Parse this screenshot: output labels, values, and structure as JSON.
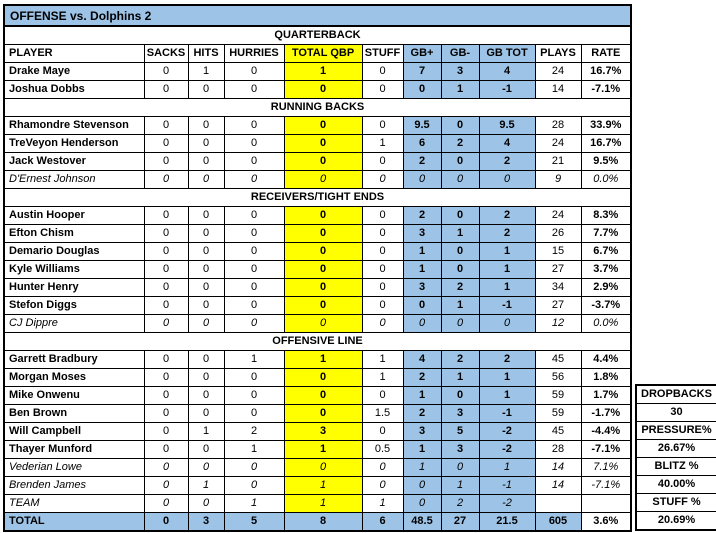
{
  "title": "OFFENSE vs. Dolphins 2",
  "colors": {
    "highlight_blue": "#9DC3E6",
    "highlight_yellow": "#FFFF00",
    "border": "#000000"
  },
  "columns": [
    "PLAYER",
    "SACKS",
    "HITS",
    "HURRIES",
    "TOTAL QBP",
    "STUFF",
    "GB+",
    "GB-",
    "GB TOT",
    "PLAYS",
    "RATE"
  ],
  "sections": [
    {
      "label": "QUARTERBACK",
      "rows": [
        {
          "player": "Drake Maye",
          "emphasis": "bold",
          "values": [
            "0",
            "1",
            "0",
            "1",
            "0",
            "7",
            "3",
            "4",
            "24",
            "16.7%"
          ]
        },
        {
          "player": "Joshua Dobbs",
          "emphasis": "bold",
          "values": [
            "0",
            "0",
            "0",
            "0",
            "0",
            "0",
            "1",
            "-1",
            "14",
            "-7.1%"
          ]
        }
      ]
    },
    {
      "label": "RUNNING BACKS",
      "rows": [
        {
          "player": "Rhamondre Stevenson",
          "emphasis": "bold",
          "values": [
            "0",
            "0",
            "0",
            "0",
            "0",
            "9.5",
            "0",
            "9.5",
            "28",
            "33.9%"
          ]
        },
        {
          "player": "TreVeyon Henderson",
          "emphasis": "bold",
          "values": [
            "0",
            "0",
            "0",
            "0",
            "1",
            "6",
            "2",
            "4",
            "24",
            "16.7%"
          ]
        },
        {
          "player": "Jack Westover",
          "emphasis": "bold",
          "values": [
            "0",
            "0",
            "0",
            "0",
            "0",
            "2",
            "0",
            "2",
            "21",
            "9.5%"
          ]
        },
        {
          "player": "D'Ernest Johnson",
          "emphasis": "italic",
          "values": [
            "0",
            "0",
            "0",
            "0",
            "0",
            "0",
            "0",
            "0",
            "9",
            "0.0%"
          ]
        }
      ]
    },
    {
      "label": "RECEIVERS/TIGHT ENDS",
      "rows": [
        {
          "player": "Austin Hooper",
          "emphasis": "bold",
          "values": [
            "0",
            "0",
            "0",
            "0",
            "0",
            "2",
            "0",
            "2",
            "24",
            "8.3%"
          ]
        },
        {
          "player": "Efton Chism",
          "emphasis": "bold",
          "values": [
            "0",
            "0",
            "0",
            "0",
            "0",
            "3",
            "1",
            "2",
            "26",
            "7.7%"
          ]
        },
        {
          "player": "Demario Douglas",
          "emphasis": "bold",
          "values": [
            "0",
            "0",
            "0",
            "0",
            "0",
            "1",
            "0",
            "1",
            "15",
            "6.7%"
          ]
        },
        {
          "player": "Kyle Williams",
          "emphasis": "bold",
          "values": [
            "0",
            "0",
            "0",
            "0",
            "0",
            "1",
            "0",
            "1",
            "27",
            "3.7%"
          ]
        },
        {
          "player": "Hunter Henry",
          "emphasis": "bold",
          "values": [
            "0",
            "0",
            "0",
            "0",
            "0",
            "3",
            "2",
            "1",
            "34",
            "2.9%"
          ]
        },
        {
          "player": "Stefon Diggs",
          "emphasis": "bold",
          "values": [
            "0",
            "0",
            "0",
            "0",
            "0",
            "0",
            "1",
            "-1",
            "27",
            "-3.7%"
          ]
        },
        {
          "player": "CJ Dippre",
          "emphasis": "italic",
          "values": [
            "0",
            "0",
            "0",
            "0",
            "0",
            "0",
            "0",
            "0",
            "12",
            "0.0%"
          ]
        }
      ]
    },
    {
      "label": "OFFENSIVE LINE",
      "rows": [
        {
          "player": "Garrett Bradbury",
          "emphasis": "bold",
          "values": [
            "0",
            "0",
            "1",
            "1",
            "1",
            "4",
            "2",
            "2",
            "45",
            "4.4%"
          ]
        },
        {
          "player": "Morgan Moses",
          "emphasis": "bold",
          "values": [
            "0",
            "0",
            "0",
            "0",
            "1",
            "2",
            "1",
            "1",
            "56",
            "1.8%"
          ]
        },
        {
          "player": "Mike Onwenu",
          "emphasis": "bold",
          "values": [
            "0",
            "0",
            "0",
            "0",
            "0",
            "1",
            "0",
            "1",
            "59",
            "1.7%"
          ]
        },
        {
          "player": "Ben Brown",
          "emphasis": "bold",
          "values": [
            "0",
            "0",
            "0",
            "0",
            "1.5",
            "2",
            "3",
            "-1",
            "59",
            "-1.7%"
          ]
        },
        {
          "player": "Will Campbell",
          "emphasis": "bold",
          "values": [
            "0",
            "1",
            "2",
            "3",
            "0",
            "3",
            "5",
            "-2",
            "45",
            "-4.4%"
          ]
        },
        {
          "player": "Thayer Munford",
          "emphasis": "bold",
          "values": [
            "0",
            "0",
            "1",
            "1",
            "0.5",
            "1",
            "3",
            "-2",
            "28",
            "-7.1%"
          ]
        },
        {
          "player": "Vederian Lowe",
          "emphasis": "italic",
          "values": [
            "0",
            "0",
            "0",
            "0",
            "0",
            "1",
            "0",
            "1",
            "14",
            "7.1%"
          ]
        },
        {
          "player": "Brenden James",
          "emphasis": "italic",
          "values": [
            "0",
            "1",
            "0",
            "1",
            "0",
            "0",
            "1",
            "-1",
            "14",
            "-7.1%"
          ]
        },
        {
          "player": "TEAM",
          "emphasis": "italic",
          "values": [
            "0",
            "0",
            "1",
            "1",
            "1",
            "0",
            "2",
            "-2",
            "",
            ""
          ]
        }
      ]
    }
  ],
  "total_row": {
    "label": "TOTAL",
    "values": [
      "0",
      "3",
      "5",
      "8",
      "6",
      "48.5",
      "27",
      "21.5",
      "605",
      "3.6%"
    ]
  },
  "side_panel": {
    "metrics": [
      {
        "label": "DROPBACKS",
        "value": "30"
      },
      {
        "label": "PRESSURE%",
        "value": "26.67%"
      },
      {
        "label": "BLITZ %",
        "value": "40.00%"
      },
      {
        "label": "STUFF %",
        "value": "20.69%"
      }
    ]
  }
}
